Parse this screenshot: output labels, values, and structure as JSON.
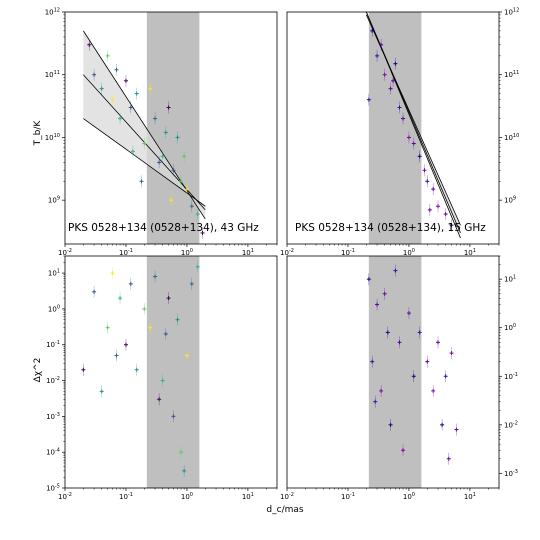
{
  "figure": {
    "xlabel": "d_c/mas",
    "ylabel_top": "T_b/K",
    "ylabel_bottom": "Δχ^2"
  },
  "panels": {
    "top_left": {
      "label": "PKS 0528+134 (0528+134), 43 GHz"
    },
    "top_right": {
      "label": "PKS 0528+134 (0528+134), 15 GHz"
    }
  },
  "chart_data": [
    {
      "id": "top_left",
      "type": "scatter",
      "title": "",
      "xlabel": "",
      "ylabel": "T_b/K",
      "xscale": "log",
      "yscale": "log",
      "xlim": [
        0.01,
        30
      ],
      "ylim": [
        200000000,
        1000000000000
      ],
      "shaded_region_x": [
        0.22,
        1.6
      ],
      "annotation": "PKS 0528+134 (0528+134), 43 GHz",
      "fit_lines": [
        {
          "x": [
            0.02,
            2.0
          ],
          "y": [
            500000000000,
            500000000
          ]
        },
        {
          "x": [
            0.02,
            2.0
          ],
          "y": [
            100000000000,
            700000000
          ]
        },
        {
          "x": [
            0.02,
            2.0
          ],
          "y": [
            20000000000,
            800000000
          ]
        }
      ],
      "colormap": "viridis",
      "scatter_points_approx": [
        [
          0.025,
          300000000000
        ],
        [
          0.03,
          100000000000
        ],
        [
          0.04,
          60000000000
        ],
        [
          0.05,
          200000000000
        ],
        [
          0.06,
          40000000000
        ],
        [
          0.07,
          120000000000
        ],
        [
          0.08,
          20000000000
        ],
        [
          0.1,
          80000000000
        ],
        [
          0.12,
          30000000000
        ],
        [
          0.15,
          50000000000
        ],
        [
          0.2,
          8000000000
        ],
        [
          0.25,
          60000000000
        ],
        [
          0.3,
          20000000000
        ],
        [
          0.4,
          5000000000
        ],
        [
          0.5,
          30000000000
        ],
        [
          0.6,
          3000000000
        ],
        [
          0.7,
          10000000000
        ],
        [
          0.8,
          2000000000
        ],
        [
          1.0,
          1500000000
        ],
        [
          1.2,
          800000000
        ],
        [
          1.5,
          600000000
        ],
        [
          1.8,
          300000000
        ],
        [
          0.35,
          4000000000
        ],
        [
          0.45,
          12000000000
        ],
        [
          0.9,
          5000000000
        ],
        [
          0.55,
          1000000000
        ],
        [
          0.18,
          2000000000
        ],
        [
          0.13,
          6000000000
        ]
      ]
    },
    {
      "id": "top_right",
      "type": "scatter",
      "title": "",
      "xlabel": "",
      "ylabel": "",
      "xscale": "log",
      "yscale": "log",
      "xlim": [
        0.01,
        30
      ],
      "ylim": [
        200000000,
        1000000000000
      ],
      "shaded_region_x": [
        0.22,
        1.6
      ],
      "annotation": "PKS 0528+134 (0528+134), 15 GHz",
      "fit_lines": [
        {
          "x": [
            0.2,
            7.0
          ],
          "y": [
            1000000000000,
            300000000
          ]
        },
        {
          "x": [
            0.2,
            7.0
          ],
          "y": [
            1000000000000,
            250000000
          ]
        },
        {
          "x": [
            0.2,
            7.0
          ],
          "y": [
            900000000000,
            400000000
          ]
        }
      ],
      "colormap": "plasma",
      "scatter_points_approx": [
        [
          0.25,
          500000000000
        ],
        [
          0.3,
          200000000000
        ],
        [
          0.35,
          300000000000
        ],
        [
          0.4,
          100000000000
        ],
        [
          0.5,
          60000000000
        ],
        [
          0.6,
          150000000000
        ],
        [
          0.7,
          30000000000
        ],
        [
          0.8,
          20000000000
        ],
        [
          1.0,
          10000000000
        ],
        [
          1.2,
          8000000000
        ],
        [
          1.5,
          5000000000
        ],
        [
          2.0,
          2000000000
        ],
        [
          2.5,
          1500000000
        ],
        [
          3.0,
          800000000
        ],
        [
          4.0,
          600000000
        ],
        [
          5.0,
          400000000
        ],
        [
          0.22,
          40000000000
        ],
        [
          0.55,
          80000000000
        ],
        [
          1.8,
          3000000000
        ],
        [
          2.2,
          700000000
        ]
      ]
    },
    {
      "id": "bottom_left",
      "type": "scatter",
      "title": "",
      "xlabel": "d_c/mas",
      "ylabel": "Δχ^2",
      "xscale": "log",
      "yscale": "log",
      "xlim": [
        0.01,
        30
      ],
      "ylim": [
        1e-05,
        30
      ],
      "shaded_region_x": [
        0.22,
        1.6
      ],
      "colormap": "viridis",
      "scatter_points_approx": [
        [
          0.02,
          0.02
        ],
        [
          0.03,
          3
        ],
        [
          0.04,
          0.005
        ],
        [
          0.05,
          0.3
        ],
        [
          0.06,
          10
        ],
        [
          0.07,
          0.05
        ],
        [
          0.08,
          2
        ],
        [
          0.1,
          0.1
        ],
        [
          0.12,
          5
        ],
        [
          0.15,
          0.02
        ],
        [
          0.2,
          1
        ],
        [
          0.25,
          0.3
        ],
        [
          0.3,
          8
        ],
        [
          0.4,
          0.01
        ],
        [
          0.5,
          2
        ],
        [
          0.6,
          0.001
        ],
        [
          0.7,
          0.5
        ],
        [
          0.8,
          0.0001
        ],
        [
          1.0,
          0.05
        ],
        [
          1.2,
          5
        ],
        [
          1.5,
          15
        ],
        [
          0.35,
          0.003
        ],
        [
          0.45,
          0.2
        ],
        [
          0.9,
          3e-05
        ]
      ]
    },
    {
      "id": "bottom_right",
      "type": "scatter",
      "title": "",
      "xlabel": "d_c/mas",
      "ylabel": "",
      "xscale": "log",
      "yscale": "log",
      "xlim": [
        0.01,
        30
      ],
      "ylim": [
        0.0005,
        30
      ],
      "shaded_region_x": [
        0.22,
        1.6
      ],
      "colormap": "plasma",
      "scatter_points_approx": [
        [
          0.22,
          10
        ],
        [
          0.25,
          0.2
        ],
        [
          0.3,
          3
        ],
        [
          0.35,
          0.05
        ],
        [
          0.4,
          5
        ],
        [
          0.5,
          0.01
        ],
        [
          0.6,
          15
        ],
        [
          0.7,
          0.5
        ],
        [
          0.8,
          0.003
        ],
        [
          1.0,
          2
        ],
        [
          1.2,
          0.1
        ],
        [
          1.5,
          0.8
        ],
        [
          2.0,
          0.2
        ],
        [
          2.5,
          0.05
        ],
        [
          3.0,
          0.5
        ],
        [
          3.5,
          0.01
        ],
        [
          4.0,
          0.1
        ],
        [
          4.5,
          0.002
        ],
        [
          5.0,
          0.3
        ],
        [
          6.0,
          0.008
        ],
        [
          0.45,
          0.8
        ],
        [
          0.28,
          0.03
        ]
      ]
    }
  ]
}
